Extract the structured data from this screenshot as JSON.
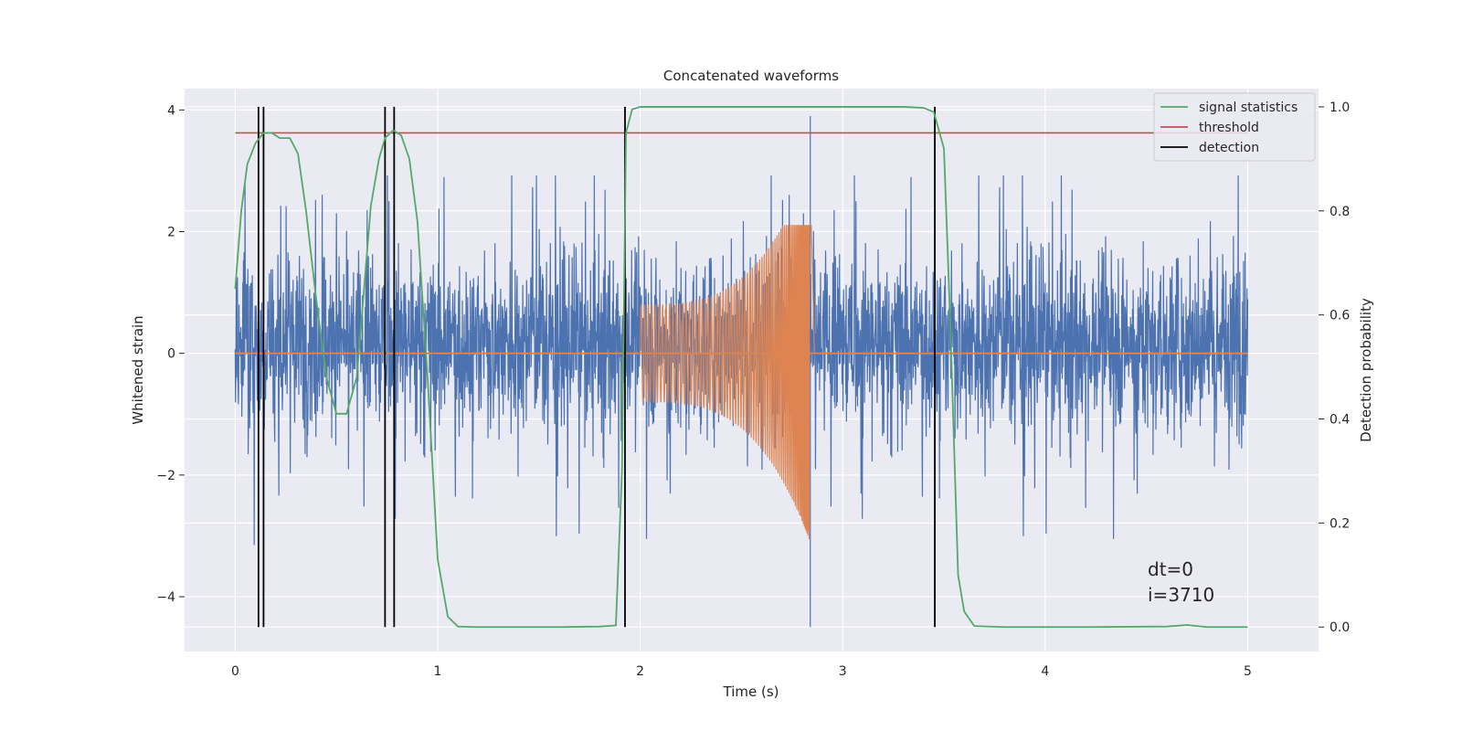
{
  "chart_data": {
    "type": "line",
    "title": "Concatenated waveforms",
    "xlabel": "Time (s)",
    "ylabel": "Whitened strain",
    "y2label": "Detection probability",
    "xlim": [
      -0.25,
      5.35
    ],
    "ylim": [
      -4.9,
      4.35
    ],
    "y2lim": [
      -0.047,
      1.035
    ],
    "xticks": [
      0,
      1,
      2,
      3,
      4,
      5
    ],
    "yticks": [
      -4,
      -2,
      0,
      2,
      4
    ],
    "y2ticks": [
      0.0,
      0.2,
      0.4,
      0.6,
      0.8,
      1.0
    ],
    "ytick_labels": [
      "−4",
      "−2",
      "0",
      "2",
      "4"
    ],
    "y2tick_labels": [
      "0.0",
      "0.2",
      "0.4",
      "0.6",
      "0.8",
      "1.0"
    ],
    "xtick_labels": [
      "0",
      "1",
      "2",
      "3",
      "4",
      "5"
    ],
    "grid": true,
    "legend_position": "top-right",
    "colors": {
      "background": "#eaeaf2",
      "grid": "#ffffff",
      "noise": "#4c72b0",
      "waveform": "#dd8452",
      "statistics": "#55a868",
      "threshold": "#c44e52",
      "detection": "#000000"
    },
    "series": [
      {
        "name": "signal statistics",
        "axis": "right",
        "x": [
          0,
          0.03,
          0.06,
          0.1,
          0.14,
          0.18,
          0.22,
          0.27,
          0.31,
          0.35,
          0.4,
          0.45,
          0.5,
          0.55,
          0.6,
          0.63,
          0.67,
          0.71,
          0.74,
          0.78,
          0.82,
          0.86,
          0.9,
          0.95,
          1.0,
          1.05,
          1.1,
          1.2,
          1.4,
          1.6,
          1.8,
          1.88,
          1.91,
          1.93,
          1.96,
          2.0,
          2.2,
          2.6,
          3.0,
          3.3,
          3.4,
          3.45,
          3.5,
          3.53,
          3.57,
          3.6,
          3.65,
          3.8,
          4.2,
          4.6,
          4.7,
          4.8,
          5.0
        ],
        "values": [
          0.65,
          0.8,
          0.89,
          0.93,
          0.95,
          0.95,
          0.94,
          0.94,
          0.91,
          0.8,
          0.63,
          0.48,
          0.41,
          0.41,
          0.48,
          0.62,
          0.81,
          0.9,
          0.94,
          0.955,
          0.945,
          0.9,
          0.78,
          0.48,
          0.13,
          0.02,
          0.001,
          0.0,
          0.0,
          0.0,
          0.001,
          0.003,
          0.3,
          0.95,
          0.995,
          1.0,
          1.0,
          1.0,
          1.0,
          1.0,
          0.998,
          0.99,
          0.92,
          0.6,
          0.1,
          0.03,
          0.002,
          0.0,
          0.0,
          0.001,
          0.004,
          0.0,
          0.0
        ]
      },
      {
        "name": "threshold",
        "axis": "right",
        "x": [
          0,
          5
        ],
        "values": [
          0.95,
          0.95
        ]
      },
      {
        "name": "detection",
        "axis": "right",
        "x": [
          0.115,
          0.14,
          0.74,
          0.785,
          1.925,
          3.455
        ],
        "values": [
          1,
          1,
          1,
          1,
          1,
          1
        ]
      },
      {
        "axis": "left",
        "kind": "noise",
        "x_range": [
          0,
          5
        ],
        "typical_range": [
          -1.1,
          1.5
        ],
        "extreme_max": 3.9,
        "extreme_min": -4.5
      },
      {
        "axis": "left",
        "kind": "waveform",
        "x_range": [
          2.0,
          2.86
        ],
        "envelope_start": 0.8,
        "envelope_peak_max": 2.1,
        "envelope_peak_min": -3.1,
        "peak_time": 2.84,
        "baseline": 0
      }
    ],
    "legend": [
      "signal statistics",
      "threshold",
      "detection"
    ],
    "annotations": {
      "dt": "dt=0",
      "i": "i=3710"
    }
  }
}
